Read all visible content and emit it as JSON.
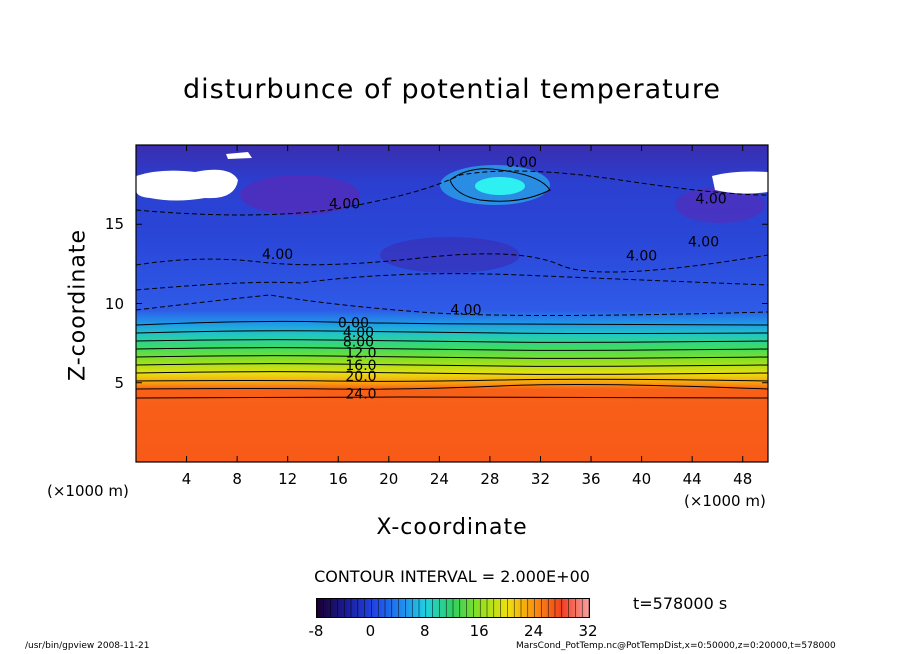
{
  "chart_data": {
    "type": "heatmap",
    "title": "disturbunce of potential temperature",
    "xlabel": "X-coordinate",
    "ylabel": "Z-coordinate",
    "x_unit_label": "(×1000 m)",
    "y_unit_label": "(×1000 m)",
    "xlim": [
      0,
      50
    ],
    "ylim": [
      0,
      20
    ],
    "x_ticks": [
      "4",
      "8",
      "12",
      "16",
      "20",
      "24",
      "28",
      "32",
      "36",
      "40",
      "44",
      "48"
    ],
    "x_tick_values": [
      4,
      8,
      12,
      16,
      20,
      24,
      28,
      32,
      36,
      40,
      44,
      48
    ],
    "y_ticks": [
      "5",
      "10",
      "15"
    ],
    "y_tick_values": [
      5,
      10,
      15
    ],
    "contour_interval_text": "CONTOUR INTERVAL = 2.000E+00",
    "time_text": "t=578000 s",
    "colorbar": {
      "min": -8,
      "max": 32,
      "tick_labels": [
        "-8",
        "0",
        "8",
        "16",
        "24",
        "32"
      ],
      "tick_values": [
        -8,
        0,
        8,
        16,
        24,
        32
      ]
    },
    "contour_labels": [
      {
        "text": "0.00",
        "x": 30.5,
        "z": 18.6
      },
      {
        "text": "4.00",
        "x": 16.5,
        "z": 16.0
      },
      {
        "text": "4.00",
        "x": 45.5,
        "z": 16.3
      },
      {
        "text": "4.00",
        "x": 11.2,
        "z": 12.8
      },
      {
        "text": "4.00",
        "x": 40.0,
        "z": 12.7
      },
      {
        "text": "4.00",
        "x": 44.9,
        "z": 13.6
      },
      {
        "text": "4.00",
        "x": 26.1,
        "z": 9.3
      },
      {
        "text": "0.00",
        "x": 17.2,
        "z": 8.5
      },
      {
        "text": "4.00",
        "x": 17.6,
        "z": 7.9
      },
      {
        "text": "8.00",
        "x": 17.6,
        "z": 7.3
      },
      {
        "text": "12.0",
        "x": 17.8,
        "z": 6.6
      },
      {
        "text": "16.0",
        "x": 17.8,
        "z": 5.8
      },
      {
        "text": "20.0",
        "x": 17.8,
        "z": 5.1
      },
      {
        "text": "24.0",
        "x": 17.8,
        "z": 4.0
      }
    ],
    "layers": [
      {
        "z_from": 0,
        "z_to": 4.0,
        "value": 28
      },
      {
        "z_from": 4.0,
        "z_to": 5.0,
        "value": 24
      },
      {
        "z_from": 5.0,
        "z_to": 6.0,
        "value": 18
      },
      {
        "z_from": 6.0,
        "z_to": 7.0,
        "value": 12
      },
      {
        "z_from": 7.0,
        "z_to": 8.3,
        "value": 6
      },
      {
        "z_from": 8.3,
        "z_to": 20,
        "value": -4
      }
    ]
  },
  "footer": {
    "left": "/usr/bin/gpview   2008-11-21",
    "right": "MarsCond_PotTemp.nc@PotTempDist,x=0:50000,z=0:20000,t=578000"
  }
}
